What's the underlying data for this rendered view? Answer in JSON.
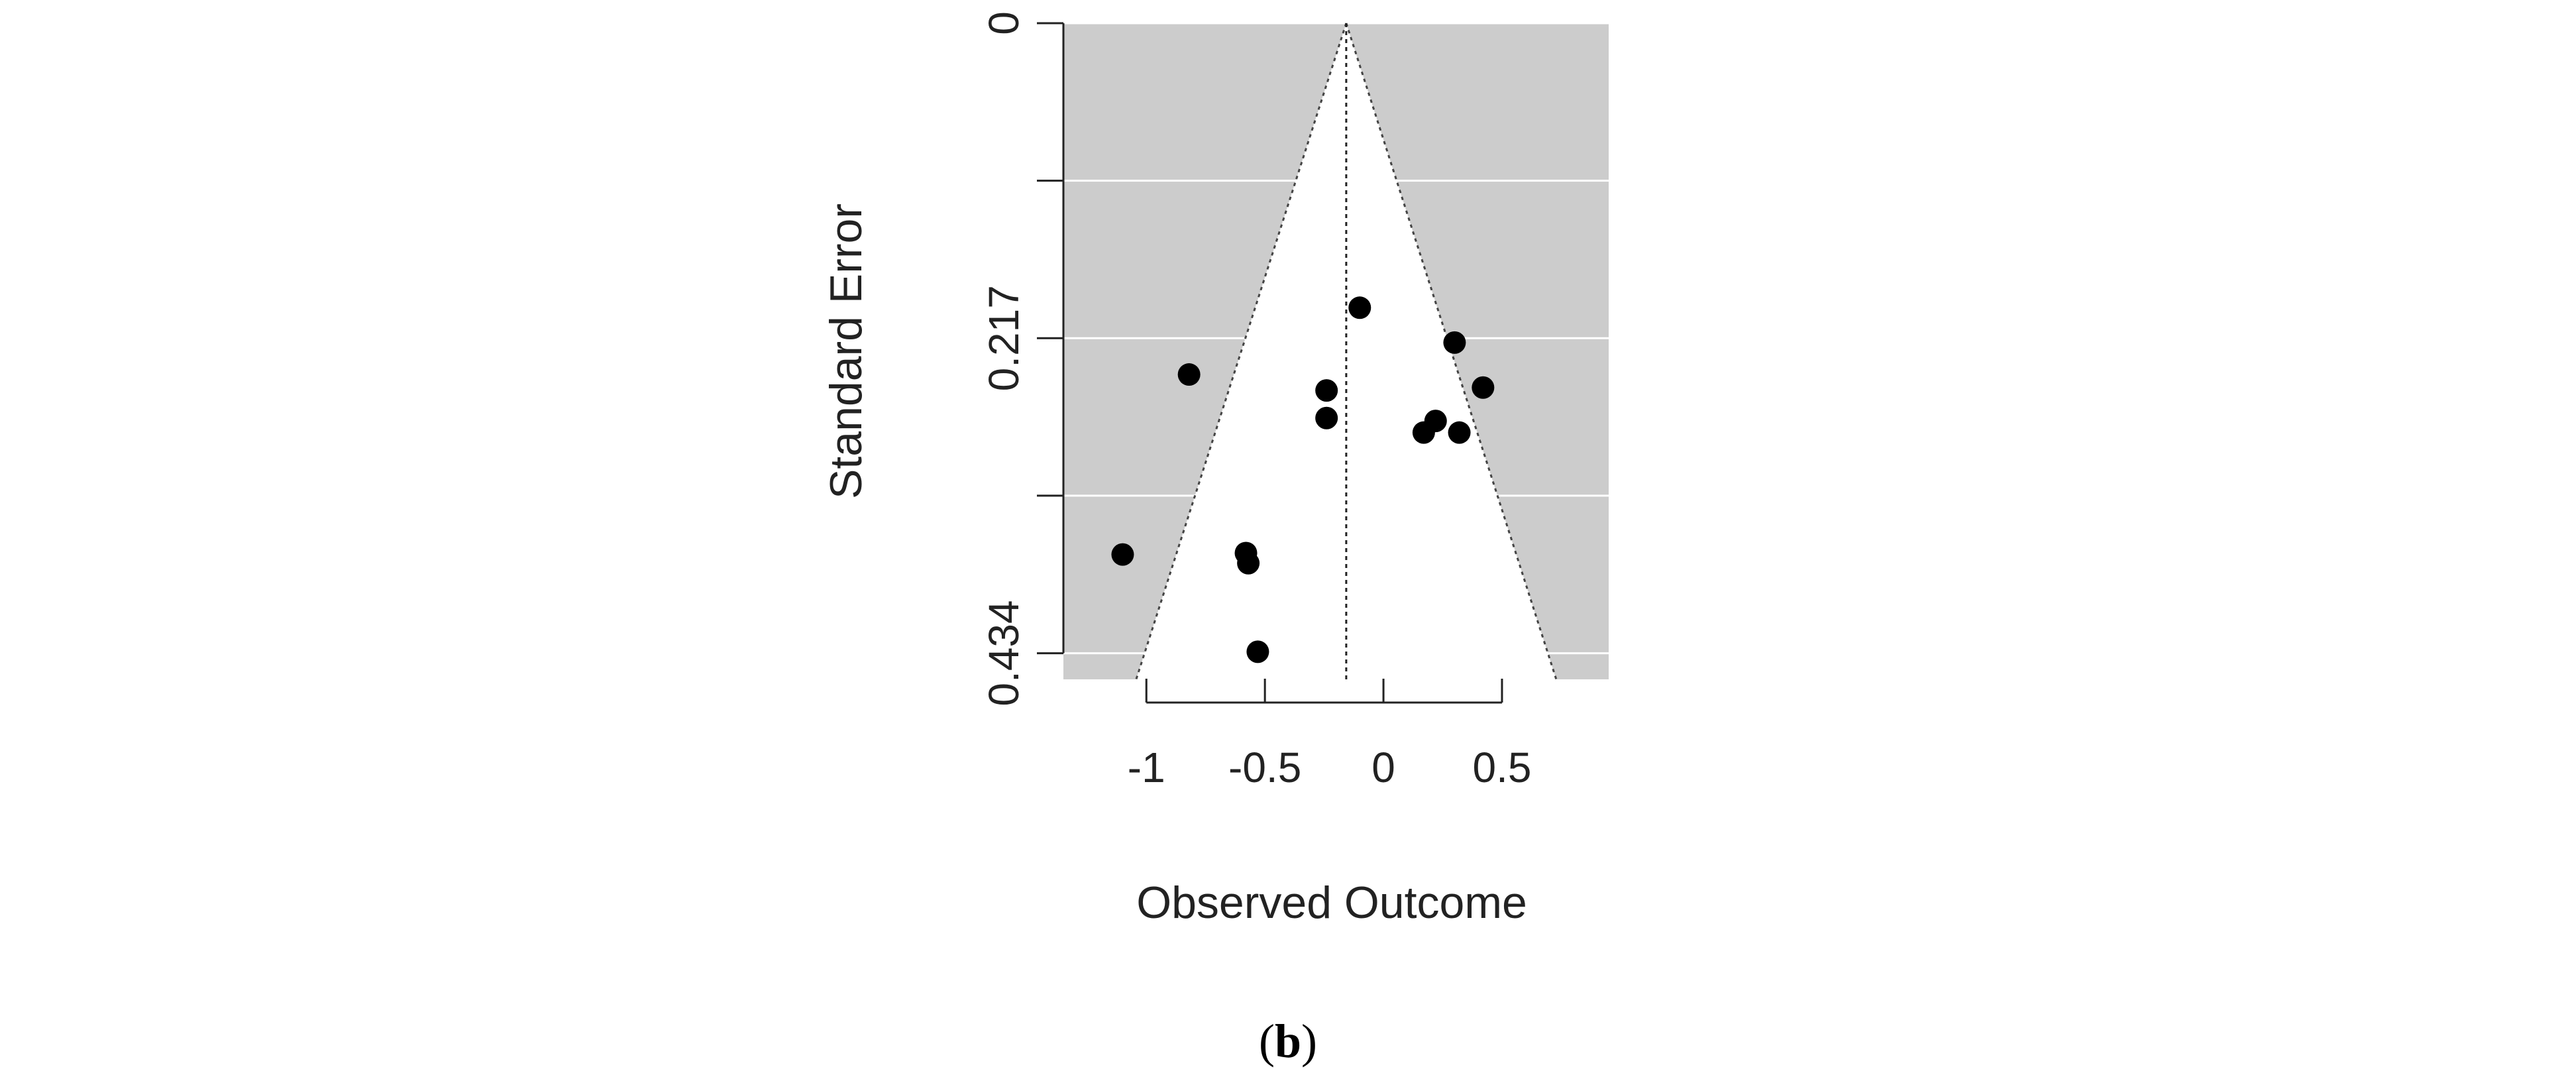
{
  "chart_data": {
    "type": "scatter",
    "subtype": "funnel-plot",
    "xlabel": "Observed Outcome",
    "ylabel": "Standard Error",
    "x_ticks": [
      "-1",
      "-0.5",
      "0",
      "0.5"
    ],
    "y_ticks": [
      "0",
      "0.217",
      "0.434"
    ],
    "xlim": [
      -1.35,
      0.95
    ],
    "ylim": [
      0,
      0.452
    ],
    "y_inverted": true,
    "y_gridlines": [
      0,
      0.1085,
      0.217,
      0.3255,
      0.434
    ],
    "grid": true,
    "center_line": -0.157,
    "funnel_multiplier": 1.96,
    "panel_background": "#cccccc",
    "funnel_fill": "#ffffff",
    "point_color": "#000000",
    "points": [
      {
        "x": -0.1,
        "y": 0.196
      },
      {
        "x": 0.3,
        "y": 0.22
      },
      {
        "x": 0.42,
        "y": 0.251
      },
      {
        "x": -0.82,
        "y": 0.242
      },
      {
        "x": -0.24,
        "y": 0.253
      },
      {
        "x": -0.24,
        "y": 0.272
      },
      {
        "x": 0.22,
        "y": 0.274
      },
      {
        "x": 0.17,
        "y": 0.282
      },
      {
        "x": 0.32,
        "y": 0.282
      },
      {
        "x": -1.1,
        "y": 0.366
      },
      {
        "x": -0.58,
        "y": 0.365
      },
      {
        "x": -0.57,
        "y": 0.372
      },
      {
        "x": -0.53,
        "y": 0.433
      }
    ]
  },
  "caption": {
    "open": "(",
    "letter": "b",
    "close": ")"
  }
}
